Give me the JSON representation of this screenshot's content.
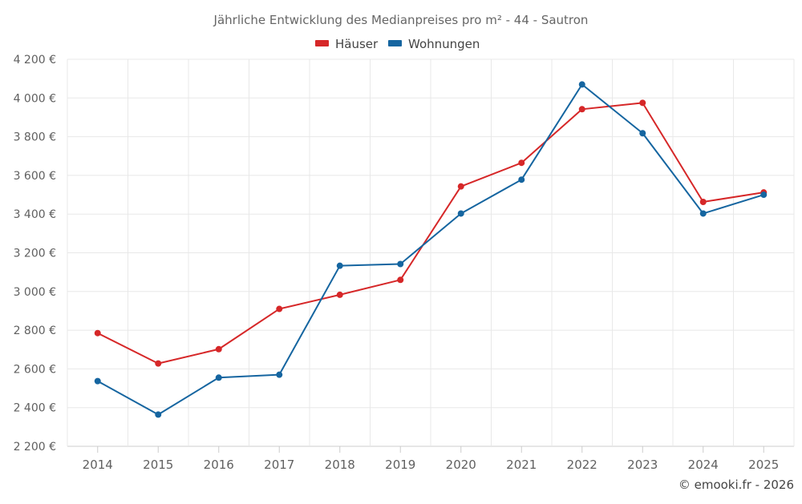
{
  "chart_data": {
    "type": "line",
    "title": "Jährliche Entwicklung des Medianpreises pro m² - 44 - Sautron",
    "categories": [
      "2014",
      "2015",
      "2016",
      "2017",
      "2018",
      "2019",
      "2020",
      "2021",
      "2022",
      "2023",
      "2024",
      "2025"
    ],
    "series": [
      {
        "name": "Häuser",
        "color": "#d62728",
        "values": [
          2785,
          2628,
          2702,
          2910,
          2983,
          3060,
          3543,
          3665,
          3942,
          3975,
          3463,
          3512
        ]
      },
      {
        "name": "Wohnungen",
        "color": "#1565a0",
        "values": [
          2537,
          2364,
          2555,
          2570,
          3133,
          3142,
          3403,
          3578,
          4070,
          3818,
          3403,
          3500
        ]
      }
    ],
    "ylim": [
      2200,
      4200
    ],
    "yticks": [
      2200,
      2400,
      2600,
      2800,
      3000,
      3200,
      3400,
      3600,
      3800,
      4000,
      4200
    ],
    "ytick_labels": [
      "2 200 €",
      "2 400 €",
      "2 600 €",
      "2 800 €",
      "3 000 €",
      "3 200 €",
      "3 400 €",
      "3 600 €",
      "3 800 €",
      "4 000 €",
      "4 200 €"
    ],
    "xlabel": "",
    "ylabel": "",
    "grid": true,
    "legend_position": "top-center"
  },
  "credit": "© emooki.fr - 2026"
}
